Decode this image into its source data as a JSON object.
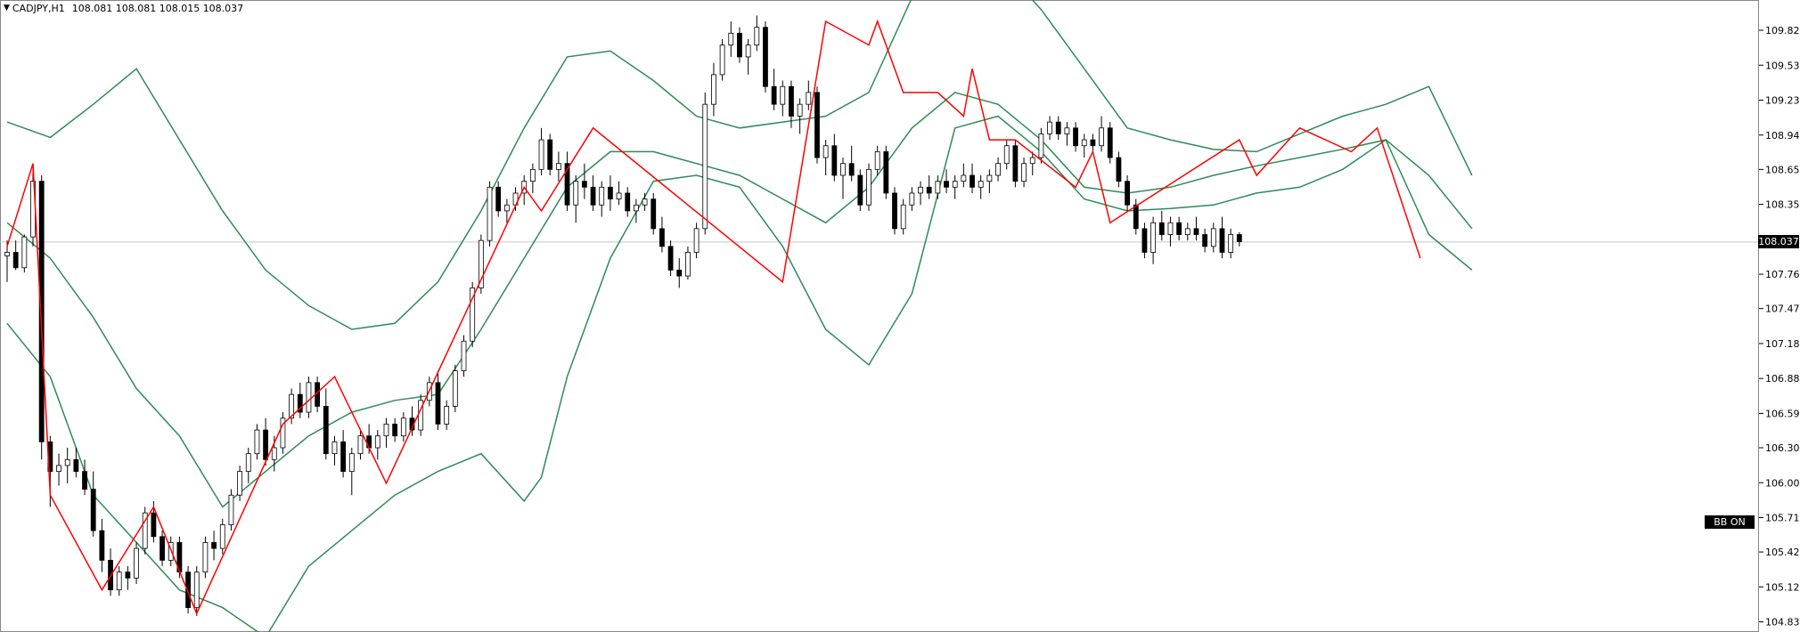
{
  "header": {
    "symbol": "CADJPY,H1",
    "ohlc": "108.081 108.081 108.015 108.037"
  },
  "price_tag": "108.037",
  "bb_button": "BB ON",
  "chart_data": {
    "type": "candlestick",
    "title": "CADJPY,H1",
    "ylim": [
      104.68,
      110.4
    ],
    "y_ticks": [
      "109.825",
      "109.530",
      "109.235",
      "108.940",
      "108.650",
      "108.355",
      "107.765",
      "107.475",
      "107.180",
      "106.885",
      "106.590",
      "106.300",
      "106.005",
      "105.710",
      "105.420",
      "105.125",
      "104.830"
    ],
    "current_price": 108.037,
    "colors": {
      "candle_outline": "#000000",
      "bear_fill": "#000000",
      "bull_fill": "#ffffff",
      "bollinger": "#2e8b57",
      "zigzag": "#ff0000",
      "price_line": "#c8c8c8"
    },
    "zigzag": [
      [
        0,
        108.0
      ],
      [
        3,
        108.7
      ],
      [
        5,
        105.9
      ],
      [
        11,
        105.1
      ],
      [
        17,
        105.8
      ],
      [
        22,
        104.9
      ],
      [
        32,
        106.5
      ],
      [
        38,
        106.9
      ],
      [
        44,
        106.0
      ],
      [
        60,
        108.5
      ],
      [
        62,
        108.3
      ],
      [
        68,
        109.0
      ],
      [
        90,
        107.7
      ],
      [
        95,
        109.9
      ],
      [
        100,
        109.7
      ],
      [
        101,
        109.9
      ],
      [
        104,
        109.3
      ],
      [
        108,
        109.3
      ],
      [
        111,
        109.1
      ],
      [
        112,
        109.5
      ],
      [
        114,
        108.9
      ],
      [
        117,
        108.9
      ],
      [
        124,
        108.5
      ],
      [
        126,
        108.8
      ],
      [
        128,
        108.2
      ],
      [
        143,
        108.9
      ],
      [
        145,
        108.6
      ],
      [
        150,
        109.0
      ],
      [
        156,
        108.8
      ],
      [
        159,
        109.0
      ],
      [
        164,
        107.9
      ]
    ],
    "bb_upper": [
      [
        0,
        109.05
      ],
      [
        5,
        108.92
      ],
      [
        10,
        109.2
      ],
      [
        15,
        109.5
      ],
      [
        20,
        108.9
      ],
      [
        25,
        108.3
      ],
      [
        30,
        107.8
      ],
      [
        35,
        107.5
      ],
      [
        40,
        107.3
      ],
      [
        45,
        107.35
      ],
      [
        50,
        107.7
      ],
      [
        55,
        108.3
      ],
      [
        60,
        109.0
      ],
      [
        65,
        109.6
      ],
      [
        70,
        109.65
      ],
      [
        75,
        109.4
      ],
      [
        80,
        109.1
      ],
      [
        85,
        109.0
      ],
      [
        90,
        109.05
      ],
      [
        95,
        109.1
      ],
      [
        100,
        109.3
      ],
      [
        105,
        110.1
      ],
      [
        110,
        110.5
      ],
      [
        115,
        110.4
      ],
      [
        120,
        110.0
      ],
      [
        125,
        109.5
      ],
      [
        130,
        109.0
      ],
      [
        135,
        108.9
      ],
      [
        140,
        108.82
      ],
      [
        145,
        108.8
      ],
      [
        150,
        108.95
      ],
      [
        155,
        109.1
      ],
      [
        160,
        109.2
      ],
      [
        165,
        109.35
      ],
      [
        170,
        108.6
      ]
    ],
    "bb_middle": [
      [
        0,
        108.2
      ],
      [
        5,
        107.9
      ],
      [
        10,
        107.4
      ],
      [
        15,
        106.8
      ],
      [
        20,
        106.4
      ],
      [
        25,
        105.8
      ],
      [
        30,
        106.1
      ],
      [
        35,
        106.4
      ],
      [
        40,
        106.6
      ],
      [
        45,
        106.7
      ],
      [
        50,
        106.75
      ],
      [
        55,
        107.3
      ],
      [
        60,
        107.9
      ],
      [
        65,
        108.5
      ],
      [
        70,
        108.8
      ],
      [
        75,
        108.8
      ],
      [
        80,
        108.7
      ],
      [
        85,
        108.6
      ],
      [
        90,
        108.4
      ],
      [
        95,
        108.2
      ],
      [
        100,
        108.5
      ],
      [
        105,
        109.0
      ],
      [
        110,
        109.3
      ],
      [
        115,
        109.2
      ],
      [
        120,
        108.9
      ],
      [
        125,
        108.5
      ],
      [
        130,
        108.45
      ],
      [
        135,
        108.5
      ],
      [
        140,
        108.6
      ],
      [
        145,
        108.68
      ],
      [
        150,
        108.75
      ],
      [
        155,
        108.82
      ],
      [
        160,
        108.9
      ],
      [
        165,
        108.6
      ],
      [
        170,
        108.15
      ]
    ],
    "bb_lower": [
      [
        0,
        107.35
      ],
      [
        5,
        106.9
      ],
      [
        10,
        105.9
      ],
      [
        15,
        105.5
      ],
      [
        20,
        105.1
      ],
      [
        25,
        104.95
      ],
      [
        30,
        104.7
      ],
      [
        35,
        105.3
      ],
      [
        40,
        105.6
      ],
      [
        45,
        105.9
      ],
      [
        50,
        106.1
      ],
      [
        55,
        106.25
      ],
      [
        60,
        105.85
      ],
      [
        62,
        106.05
      ],
      [
        65,
        106.9
      ],
      [
        70,
        107.9
      ],
      [
        75,
        108.55
      ],
      [
        80,
        108.6
      ],
      [
        85,
        108.5
      ],
      [
        90,
        108.0
      ],
      [
        95,
        107.3
      ],
      [
        100,
        107.0
      ],
      [
        105,
        107.6
      ],
      [
        110,
        109.0
      ],
      [
        115,
        109.1
      ],
      [
        120,
        108.8
      ],
      [
        125,
        108.4
      ],
      [
        130,
        108.3
      ],
      [
        135,
        108.32
      ],
      [
        140,
        108.35
      ],
      [
        145,
        108.45
      ],
      [
        150,
        108.5
      ],
      [
        155,
        108.65
      ],
      [
        160,
        108.9
      ],
      [
        165,
        108.1
      ],
      [
        170,
        107.8
      ]
    ],
    "candles": [
      [
        107.92,
        108.05,
        107.7,
        107.95
      ],
      [
        107.95,
        108.05,
        107.8,
        107.82
      ],
      [
        107.82,
        108.1,
        107.78,
        108.08
      ],
      [
        108.08,
        108.7,
        108.0,
        108.55
      ],
      [
        108.55,
        108.6,
        106.2,
        106.35
      ],
      [
        106.35,
        106.4,
        105.8,
        106.1
      ],
      [
        106.1,
        106.25,
        105.98,
        106.15
      ],
      [
        106.15,
        106.3,
        106.0,
        106.2
      ],
      [
        106.2,
        106.3,
        106.05,
        106.1
      ],
      [
        106.1,
        106.2,
        105.9,
        105.95
      ],
      [
        105.95,
        106.1,
        105.55,
        105.6
      ],
      [
        105.6,
        105.7,
        105.25,
        105.35
      ],
      [
        105.35,
        105.45,
        105.05,
        105.1
      ],
      [
        105.1,
        105.3,
        105.05,
        105.25
      ],
      [
        105.25,
        105.3,
        105.1,
        105.2
      ],
      [
        105.2,
        105.5,
        105.15,
        105.45
      ],
      [
        105.45,
        105.8,
        105.4,
        105.75
      ],
      [
        105.75,
        105.85,
        105.5,
        105.55
      ],
      [
        105.55,
        105.6,
        105.3,
        105.35
      ],
      [
        105.35,
        105.55,
        105.3,
        105.5
      ],
      [
        105.5,
        105.55,
        105.2,
        105.25
      ],
      [
        105.25,
        105.3,
        104.9,
        104.95
      ],
      [
        104.95,
        105.3,
        104.88,
        105.25
      ],
      [
        105.25,
        105.55,
        105.2,
        105.5
      ],
      [
        105.5,
        105.6,
        105.35,
        105.45
      ],
      [
        105.45,
        105.7,
        105.4,
        105.65
      ],
      [
        105.65,
        105.95,
        105.6,
        105.9
      ],
      [
        105.9,
        106.15,
        105.85,
        106.1
      ],
      [
        106.1,
        106.3,
        106.0,
        106.25
      ],
      [
        106.25,
        106.5,
        106.2,
        106.45
      ],
      [
        106.45,
        106.55,
        106.15,
        106.2
      ],
      [
        106.2,
        106.4,
        106.1,
        106.3
      ],
      [
        106.3,
        106.6,
        106.25,
        106.55
      ],
      [
        106.55,
        106.8,
        106.5,
        106.75
      ],
      [
        106.75,
        106.85,
        106.55,
        106.6
      ],
      [
        106.6,
        106.9,
        106.55,
        106.85
      ],
      [
        106.85,
        106.9,
        106.6,
        106.65
      ],
      [
        106.65,
        106.8,
        106.2,
        106.25
      ],
      [
        106.25,
        106.4,
        106.15,
        106.35
      ],
      [
        106.35,
        106.45,
        106.05,
        106.1
      ],
      [
        106.1,
        106.3,
        105.9,
        106.25
      ],
      [
        106.25,
        106.45,
        106.2,
        106.4
      ],
      [
        106.4,
        106.5,
        106.25,
        106.3
      ],
      [
        106.3,
        106.45,
        106.2,
        106.4
      ],
      [
        106.4,
        106.55,
        106.3,
        106.5
      ],
      [
        106.5,
        106.55,
        106.35,
        106.4
      ],
      [
        106.4,
        106.6,
        106.35,
        106.55
      ],
      [
        106.55,
        106.65,
        106.4,
        106.45
      ],
      [
        106.45,
        106.75,
        106.4,
        106.7
      ],
      [
        106.7,
        106.9,
        106.65,
        106.85
      ],
      [
        106.85,
        106.95,
        106.45,
        106.5
      ],
      [
        106.5,
        106.7,
        106.45,
        106.65
      ],
      [
        106.65,
        107.0,
        106.6,
        106.95
      ],
      [
        106.95,
        107.25,
        106.9,
        107.2
      ],
      [
        107.2,
        107.7,
        107.15,
        107.65
      ],
      [
        107.65,
        108.1,
        107.6,
        108.05
      ],
      [
        108.05,
        108.55,
        108.0,
        108.5
      ],
      [
        108.5,
        108.55,
        108.25,
        108.3
      ],
      [
        108.3,
        108.4,
        108.2,
        108.35
      ],
      [
        108.35,
        108.5,
        108.3,
        108.45
      ],
      [
        108.45,
        108.6,
        108.35,
        108.55
      ],
      [
        108.55,
        108.7,
        108.45,
        108.65
      ],
      [
        108.65,
        109.0,
        108.6,
        108.9
      ],
      [
        108.9,
        108.95,
        108.6,
        108.65
      ],
      [
        108.65,
        108.8,
        108.55,
        108.7
      ],
      [
        108.7,
        108.8,
        108.3,
        108.35
      ],
      [
        108.35,
        108.6,
        108.2,
        108.55
      ],
      [
        108.55,
        108.7,
        108.4,
        108.5
      ],
      [
        108.5,
        108.6,
        108.3,
        108.35
      ],
      [
        108.35,
        108.55,
        108.25,
        108.5
      ],
      [
        108.5,
        108.6,
        108.3,
        108.4
      ],
      [
        108.4,
        108.55,
        108.35,
        108.45
      ],
      [
        108.45,
        108.5,
        108.25,
        108.3
      ],
      [
        108.3,
        108.4,
        108.2,
        108.35
      ],
      [
        108.35,
        108.45,
        108.3,
        108.4
      ],
      [
        108.4,
        108.45,
        108.1,
        108.15
      ],
      [
        108.15,
        108.25,
        107.95,
        108.0
      ],
      [
        108.0,
        108.05,
        107.75,
        107.8
      ],
      [
        107.8,
        107.9,
        107.65,
        107.75
      ],
      [
        107.75,
        108.0,
        107.72,
        107.95
      ],
      [
        107.95,
        108.2,
        107.9,
        108.15
      ],
      [
        108.15,
        109.3,
        108.1,
        109.2
      ],
      [
        109.2,
        109.55,
        109.1,
        109.45
      ],
      [
        109.45,
        109.75,
        109.4,
        109.7
      ],
      [
        109.7,
        109.9,
        109.6,
        109.8
      ],
      [
        109.8,
        109.85,
        109.55,
        109.6
      ],
      [
        109.6,
        109.75,
        109.45,
        109.7
      ],
      [
        109.7,
        109.95,
        109.65,
        109.85
      ],
      [
        109.85,
        109.9,
        109.3,
        109.35
      ],
      [
        109.35,
        109.5,
        109.15,
        109.2
      ],
      [
        109.2,
        109.4,
        109.1,
        109.35
      ],
      [
        109.35,
        109.4,
        109.0,
        109.1
      ],
      [
        109.1,
        109.25,
        108.95,
        109.2
      ],
      [
        109.2,
        109.4,
        109.15,
        109.3
      ],
      [
        109.3,
        109.35,
        108.7,
        108.75
      ],
      [
        108.75,
        108.9,
        108.6,
        108.85
      ],
      [
        108.85,
        108.95,
        108.55,
        108.6
      ],
      [
        108.6,
        108.75,
        108.4,
        108.7
      ],
      [
        108.7,
        108.85,
        108.55,
        108.6
      ],
      [
        108.6,
        108.65,
        108.3,
        108.35
      ],
      [
        108.35,
        108.7,
        108.3,
        108.65
      ],
      [
        108.65,
        108.85,
        108.6,
        108.8
      ],
      [
        108.8,
        108.85,
        108.4,
        108.45
      ],
      [
        108.45,
        108.5,
        108.1,
        108.15
      ],
      [
        108.15,
        108.4,
        108.1,
        108.35
      ],
      [
        108.35,
        108.5,
        108.3,
        108.45
      ],
      [
        108.45,
        108.55,
        108.35,
        108.5
      ],
      [
        108.5,
        108.6,
        108.4,
        108.45
      ],
      [
        108.45,
        108.6,
        108.4,
        108.55
      ],
      [
        108.55,
        108.65,
        108.45,
        108.5
      ],
      [
        108.5,
        108.6,
        108.4,
        108.55
      ],
      [
        108.55,
        108.7,
        108.5,
        108.6
      ],
      [
        108.6,
        108.7,
        108.45,
        108.5
      ],
      [
        108.5,
        108.6,
        108.4,
        108.55
      ],
      [
        108.55,
        108.65,
        108.45,
        108.6
      ],
      [
        108.6,
        108.75,
        108.55,
        108.7
      ],
      [
        108.7,
        108.9,
        108.65,
        108.85
      ],
      [
        108.85,
        108.9,
        108.5,
        108.55
      ],
      [
        108.55,
        108.75,
        108.5,
        108.7
      ],
      [
        108.7,
        108.8,
        108.6,
        108.75
      ],
      [
        108.75,
        109.0,
        108.7,
        108.95
      ],
      [
        108.95,
        109.1,
        108.9,
        109.05
      ],
      [
        109.05,
        109.1,
        108.9,
        108.95
      ],
      [
        108.95,
        109.05,
        108.85,
        109.0
      ],
      [
        109.0,
        109.05,
        108.8,
        108.85
      ],
      [
        108.85,
        108.95,
        108.75,
        108.9
      ],
      [
        108.9,
        108.95,
        108.8,
        108.85
      ],
      [
        108.85,
        109.1,
        108.8,
        109.0
      ],
      [
        109.0,
        109.05,
        108.7,
        108.75
      ],
      [
        108.75,
        108.8,
        108.5,
        108.55
      ],
      [
        108.55,
        108.6,
        108.3,
        108.35
      ],
      [
        108.35,
        108.4,
        108.1,
        108.15
      ],
      [
        108.15,
        108.2,
        107.9,
        107.95
      ],
      [
        107.95,
        108.25,
        107.85,
        108.2
      ],
      [
        108.2,
        108.3,
        108.05,
        108.1
      ],
      [
        108.1,
        108.25,
        108.0,
        108.2
      ],
      [
        108.2,
        108.25,
        108.05,
        108.1
      ],
      [
        108.1,
        108.2,
        108.05,
        108.15
      ],
      [
        108.15,
        108.25,
        108.05,
        108.1
      ],
      [
        108.1,
        108.15,
        107.95,
        108.0
      ],
      [
        108.0,
        108.2,
        107.95,
        108.15
      ],
      [
        108.15,
        108.25,
        107.9,
        107.95
      ],
      [
        107.95,
        108.15,
        107.9,
        108.1
      ],
      [
        108.1,
        108.12,
        108.0,
        108.04
      ]
    ]
  }
}
